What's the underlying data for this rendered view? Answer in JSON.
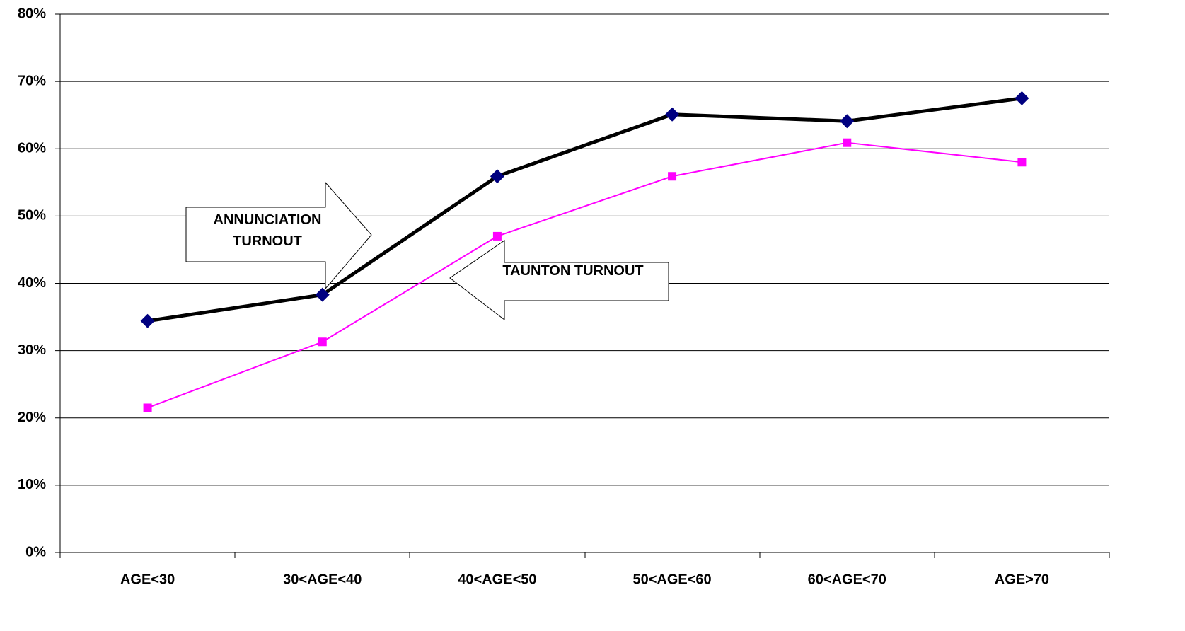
{
  "chart_data": {
    "type": "line",
    "categories": [
      "AGE<30",
      "30<AGE<40",
      "40<AGE<50",
      "50<AGE<60",
      "60<AGE<70",
      "AGE>70"
    ],
    "series": [
      {
        "name": "ANNUNCIATION TURNOUT",
        "color": "#000000",
        "marker_color": "#000080",
        "values": [
          34.4,
          38.3,
          55.9,
          65.1,
          64.1,
          67.5
        ]
      },
      {
        "name": "TAUNTON TURNOUT",
        "color": "#ff00ff",
        "marker_color": "#ff00ff",
        "values": [
          21.5,
          31.3,
          47.0,
          55.9,
          60.9,
          58.0
        ]
      }
    ],
    "ylim": [
      0,
      80
    ],
    "yticks": [
      {
        "value": 0,
        "label": "0%"
      },
      {
        "value": 10,
        "label": "10%"
      },
      {
        "value": 20,
        "label": "20%"
      },
      {
        "value": 30,
        "label": "30%"
      },
      {
        "value": 40,
        "label": "40%"
      },
      {
        "value": 50,
        "label": "50%"
      },
      {
        "value": 60,
        "label": "60%"
      },
      {
        "value": 70,
        "label": "70%"
      },
      {
        "value": 80,
        "label": "80%"
      }
    ],
    "grid": true
  }
}
